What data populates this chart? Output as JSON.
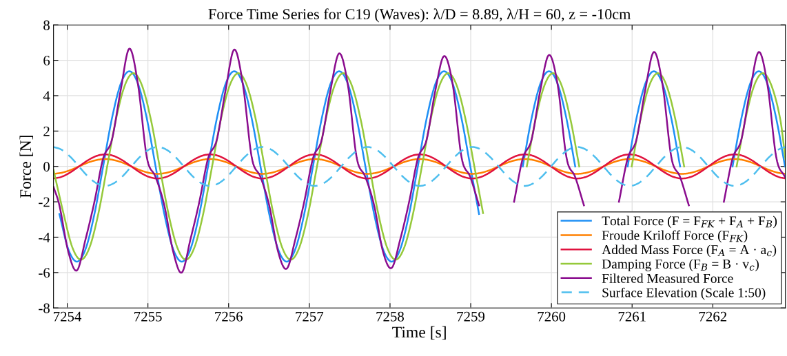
{
  "chart_data": {
    "type": "line",
    "title": "Force Time Series for C19 (Waves): λ/D = 8.89, λ/H = 60, z = -10cm",
    "xlabel": "Time [s]",
    "ylabel": "Force [N]",
    "xlim": [
      7253.83,
      7262.9
    ],
    "ylim": [
      -8,
      8
    ],
    "xticks": [
      7254,
      7255,
      7256,
      7257,
      7258,
      7259,
      7260,
      7261,
      7262
    ],
    "yticks": [
      -8,
      -6,
      -4,
      -2,
      0,
      2,
      4,
      6,
      8
    ],
    "grid": true,
    "legend": "bottom right",
    "series": [
      {
        "name": "Total Force (F = F$_{FK}$ + F$_{A}$ + F$_{B}$)",
        "color": "#1e8ff5",
        "x": [
          7253.903,
          7254.012,
          7254.12,
          7254.228,
          7254.337,
          7254.445,
          7254.553,
          7254.662,
          7254.77,
          7254.878,
          7254.987,
          7255.095,
          7255.203,
          7255.312,
          7255.42,
          7255.528,
          7255.637,
          7255.745,
          7255.853,
          7255.962,
          7256.07,
          7256.178,
          7256.287,
          7256.395,
          7256.503,
          7256.612,
          7256.72,
          7256.828,
          7256.937,
          7257.045,
          7257.153,
          7257.262,
          7257.37,
          7257.478,
          7257.587,
          7257.695,
          7257.803,
          7257.912,
          7258.02,
          7258.128,
          7258.237,
          7258.345,
          7258.453,
          7258.562,
          7258.67,
          7258.778,
          7258.887,
          7258.995,
          7259.103,
          7259.212,
          7259.32,
          7259.428,
          7259.537,
          7259.645,
          7259.753,
          7259.862,
          7259.97,
          7260.078,
          7260.187,
          7260.295,
          7260.403,
          7260.512,
          7260.62,
          7260.728,
          7260.837,
          7260.945,
          7261.053,
          7261.162,
          7261.27,
          7261.378,
          7261.487,
          7261.595,
          7261.703,
          7261.812,
          7261.92,
          7262.028,
          7262.137,
          7262.245,
          7262.353,
          7262.462,
          7262.57,
          7262.678,
          7262.787,
          7262.895
        ],
        "values": [
          -2.69,
          -4.66,
          -5.38,
          -4.66,
          -2.69,
          0,
          2.69,
          4.66,
          5.38,
          4.66,
          2.69,
          0,
          -2.69,
          -4.66,
          -5.38,
          -4.66,
          -2.69,
          0,
          2.69,
          4.66,
          5.38,
          4.66,
          2.69,
          0,
          -2.69,
          -4.66,
          -5.38,
          -4.66,
          -2.69,
          0,
          2.69,
          4.66,
          5.38,
          4.66,
          2.69,
          0,
          -2.69,
          -4.66,
          -5.38,
          -4.66,
          -2.69,
          0,
          2.69,
          4.66,
          5.38,
          4.66,
          2.69,
          0,
          -2.69,
          null,
          null,
          null,
          null,
          0,
          2.69,
          4.66,
          5.38,
          4.66,
          2.69,
          0,
          null,
          null,
          null,
          null,
          null,
          0,
          2.69,
          4.66,
          5.38,
          4.66,
          2.69,
          0,
          null,
          null,
          null,
          null,
          null,
          0,
          2.69,
          4.66,
          5.38,
          4.66,
          2.69,
          0
        ]
      },
      {
        "name": "Froude Kriloff Force (F$_{FK}$)",
        "color": "#ff8000",
        "x": [
          7253.83,
          7253.928,
          7254.037,
          7254.145,
          7254.253,
          7254.362,
          7254.47,
          7254.578,
          7254.687,
          7254.795,
          7254.903,
          7255.012,
          7255.12,
          7255.228,
          7255.337,
          7255.445,
          7255.553,
          7255.662,
          7255.77,
          7255.878,
          7255.987,
          7256.095,
          7256.203,
          7256.312,
          7256.42,
          7256.528,
          7256.637,
          7256.745,
          7256.853,
          7256.962,
          7257.07,
          7257.178,
          7257.287,
          7257.395,
          7257.503,
          7257.612,
          7257.72,
          7257.828,
          7257.937,
          7258.045,
          7258.153,
          7258.262,
          7258.37,
          7258.478,
          7258.587,
          7258.695,
          7258.803,
          7258.912,
          7259.02,
          7259.128,
          7259.237,
          7259.345,
          7259.453,
          7259.562,
          7259.67,
          7259.778,
          7259.887,
          7259.995,
          7260.103,
          7260.212,
          7260.32,
          7260.428,
          7260.537,
          7260.645,
          7260.753,
          7260.862,
          7260.97,
          7261.078,
          7261.187,
          7261.295,
          7261.403,
          7261.512,
          7261.62,
          7261.728,
          7261.837,
          7261.945,
          7262.053,
          7262.162,
          7262.27,
          7262.378,
          7262.487,
          7262.595,
          7262.703,
          7262.812,
          7262.9
        ],
        "values": [
          -0.42,
          -0.36,
          -0.21,
          0,
          0.21,
          0.36,
          0.42,
          0.36,
          0.21,
          0,
          -0.21,
          -0.36,
          -0.42,
          -0.36,
          -0.21,
          0,
          0.21,
          0.36,
          0.42,
          0.36,
          0.21,
          0,
          -0.21,
          -0.36,
          -0.42,
          -0.36,
          -0.21,
          0,
          0.21,
          0.36,
          0.42,
          0.36,
          0.21,
          0,
          -0.21,
          -0.36,
          -0.42,
          -0.36,
          -0.21,
          0,
          0.21,
          0.36,
          0.42,
          0.36,
          0.21,
          0,
          -0.21,
          -0.36,
          -0.42,
          -0.36,
          -0.21,
          0,
          0.21,
          0.36,
          0.42,
          0.36,
          0.21,
          0,
          -0.21,
          -0.36,
          -0.42,
          -0.36,
          -0.21,
          0,
          0.21,
          0.36,
          0.42,
          0.36,
          0.21,
          0,
          -0.21,
          -0.36,
          -0.42,
          -0.36,
          -0.21,
          0,
          0.21,
          0.36,
          0.42,
          0.36,
          0.21,
          0,
          -0.21,
          -0.36,
          -0.42
        ]
      },
      {
        "name": "Added Mass Force (F$_{A}$ = A · a$_{c}$)",
        "color": "#e0123e",
        "x": [
          7253.83,
          7253.928,
          7254.037,
          7254.145,
          7254.253,
          7254.362,
          7254.47,
          7254.578,
          7254.687,
          7254.795,
          7254.903,
          7255.012,
          7255.12,
          7255.228,
          7255.337,
          7255.445,
          7255.553,
          7255.662,
          7255.77,
          7255.878,
          7255.987,
          7256.095,
          7256.203,
          7256.312,
          7256.42,
          7256.528,
          7256.637,
          7256.745,
          7256.853,
          7256.962,
          7257.07,
          7257.178,
          7257.287,
          7257.395,
          7257.503,
          7257.612,
          7257.72,
          7257.828,
          7257.937,
          7258.045,
          7258.153,
          7258.262,
          7258.37,
          7258.478,
          7258.587,
          7258.695,
          7258.803,
          7258.912,
          7259.02,
          7259.128,
          7259.237,
          7259.345,
          7259.453,
          7259.562,
          7259.67,
          7259.778,
          7259.887,
          7259.995,
          7260.103,
          7260.212,
          7260.32,
          7260.428,
          7260.537,
          7260.645,
          7260.753,
          7260.862,
          7260.97,
          7261.078,
          7261.187,
          7261.295,
          7261.403,
          7261.512,
          7261.62,
          7261.728,
          7261.837,
          7261.945,
          7262.053,
          7262.162,
          7262.27,
          7262.378,
          7262.487,
          7262.595,
          7262.703,
          7262.812,
          7262.9
        ],
        "values": [
          -0.68,
          -0.59,
          -0.34,
          0,
          0.34,
          0.59,
          0.68,
          0.59,
          0.34,
          0,
          -0.34,
          -0.59,
          -0.68,
          -0.59,
          -0.34,
          0,
          0.34,
          0.59,
          0.68,
          0.59,
          0.34,
          0,
          -0.34,
          -0.59,
          -0.68,
          -0.59,
          -0.34,
          0,
          0.34,
          0.59,
          0.68,
          0.59,
          0.34,
          0,
          -0.34,
          -0.59,
          -0.68,
          -0.59,
          -0.34,
          0,
          0.34,
          0.59,
          0.68,
          0.59,
          0.34,
          0,
          -0.34,
          -0.59,
          -0.68,
          -0.59,
          -0.34,
          0,
          0.34,
          0.59,
          0.68,
          0.59,
          0.34,
          0,
          -0.34,
          -0.59,
          -0.68,
          -0.59,
          -0.34,
          0,
          0.34,
          0.59,
          0.68,
          0.59,
          0.34,
          0,
          -0.34,
          -0.59,
          -0.68,
          -0.59,
          -0.34,
          0,
          0.34,
          0.59,
          0.68,
          0.59,
          0.34,
          0,
          -0.34,
          -0.59,
          -0.68
        ]
      },
      {
        "name": "Damping Force (F$_{B}$ = B · v$_{c}$)",
        "color": "#95c93a",
        "x": [
          7253.83,
          7253.953,
          7254.062,
          7254.17,
          7254.278,
          7254.387,
          7254.495,
          7254.603,
          7254.712,
          7254.82,
          7254.928,
          7255.037,
          7255.145,
          7255.253,
          7255.362,
          7255.47,
          7255.578,
          7255.687,
          7255.795,
          7255.903,
          7256.012,
          7256.12,
          7256.228,
          7256.337,
          7256.445,
          7256.553,
          7256.662,
          7256.77,
          7256.878,
          7256.987,
          7257.095,
          7257.203,
          7257.312,
          7257.42,
          7257.528,
          7257.637,
          7257.745,
          7257.853,
          7257.962,
          7258.07,
          7258.178,
          7258.287,
          7258.395,
          7258.503,
          7258.612,
          7258.72,
          7258.828,
          7258.937,
          7259.045,
          7259.153,
          7259.262,
          7259.37,
          7259.478,
          7259.587,
          7259.695,
          7259.803,
          7259.912,
          7260.02,
          7260.128,
          7260.237,
          7260.345,
          7260.453,
          7260.562,
          7260.67,
          7260.778,
          7260.887,
          7260.995,
          7261.103,
          7261.212,
          7261.32,
          7261.428,
          7261.537,
          7261.645,
          7261.753,
          7261.862,
          7261.97,
          7262.078,
          7262.187,
          7262.295,
          7262.403,
          7262.512,
          7262.62,
          7262.728,
          7262.837,
          7262.9
        ],
        "values": [
          -0.2,
          -2.64,
          -4.56,
          -5.27,
          -4.56,
          -2.64,
          0,
          2.64,
          4.56,
          5.27,
          4.56,
          2.64,
          0,
          -2.64,
          -4.56,
          -5.27,
          -4.56,
          -2.64,
          0,
          2.64,
          4.56,
          5.27,
          4.56,
          2.64,
          0,
          -2.64,
          -4.56,
          -5.27,
          -4.56,
          -2.64,
          0,
          2.64,
          4.56,
          5.27,
          4.56,
          2.64,
          0,
          -2.64,
          -4.56,
          -5.27,
          -4.56,
          -2.64,
          0,
          2.64,
          4.56,
          5.27,
          4.56,
          2.64,
          0,
          -2.64,
          null,
          null,
          null,
          null,
          0,
          2.64,
          4.56,
          5.27,
          4.56,
          2.64,
          0,
          null,
          null,
          null,
          null,
          null,
          0,
          2.64,
          4.56,
          5.27,
          4.56,
          2.64,
          0,
          null,
          null,
          null,
          null,
          null,
          0,
          2.64,
          4.56,
          5.27,
          4.56,
          2.64,
          0.4
        ]
      },
      {
        "name": "Filtered Measured Force",
        "color": "#8a0c8e",
        "x": [
          7253.83,
          7253.903,
          7254.012,
          7254.12,
          7254.228,
          7254.337,
          7254.445,
          7254.553,
          7254.662,
          7254.77,
          7254.878,
          7254.987,
          7255.095,
          7255.203,
          7255.312,
          7255.42,
          7255.528,
          7255.637,
          7255.745,
          7255.853,
          7255.962,
          7256.07,
          7256.178,
          7256.287,
          7256.395,
          7256.503,
          7256.612,
          7256.72,
          7256.828,
          7256.937,
          7257.045,
          7257.153,
          7257.262,
          7257.37,
          7257.478,
          7257.587,
          7257.695,
          7257.803,
          7257.912,
          7258.02,
          7258.128,
          7258.237,
          7258.345,
          7258.453,
          7258.562,
          7258.67,
          7258.778,
          7258.887,
          7258.995,
          7259.103,
          7259.212,
          7259.32,
          7259.428,
          7259.537,
          7259.645,
          7259.753,
          7259.862,
          7259.97,
          7260.078,
          7260.187,
          7260.295,
          7260.403,
          7260.512,
          7260.62,
          7260.728,
          7260.837,
          7260.945,
          7261.053,
          7261.162,
          7261.27,
          7261.378,
          7261.487,
          7261.595,
          7261.703,
          7261.812,
          7261.92,
          7262.028,
          7262.137,
          7262.245,
          7262.353,
          7262.462,
          7262.57,
          7262.678,
          7262.787,
          7262.895
        ],
        "values": [
          -1.16,
          -2.2,
          -4.8,
          -5.88,
          -4.1,
          -2.0,
          0.45,
          1.5,
          4.3,
          6.66,
          4.6,
          0.5,
          -0.6,
          -2.2,
          -4.8,
          -6.0,
          -4.1,
          -2.0,
          0.45,
          1.5,
          4.3,
          6.61,
          4.6,
          0.5,
          -0.6,
          -2.2,
          -4.8,
          -5.78,
          -4.1,
          -2.0,
          0.45,
          1.5,
          4.3,
          6.39,
          4.6,
          0.5,
          -0.6,
          -2.2,
          -4.8,
          -5.74,
          -4.1,
          -2.0,
          0.45,
          1.5,
          4.3,
          6.24,
          4.6,
          0.5,
          -0.6,
          -2.2,
          null,
          null,
          null,
          -2.0,
          0.45,
          1.5,
          4.3,
          6.3,
          4.6,
          0.5,
          -0.6,
          -2.2,
          null,
          null,
          null,
          -2.0,
          0.45,
          1.5,
          4.3,
          6.47,
          4.6,
          0.5,
          -0.6,
          -2.2,
          null,
          null,
          null,
          -2.0,
          0.45,
          1.5,
          4.3,
          6.47,
          4.6,
          0.5,
          -0.6
        ]
      },
      {
        "name": "Surface Elevation (Scale 1:50)",
        "color": "#4dbeee",
        "line_style": "dashed",
        "x": [
          7253.83,
          7253.928,
          7254.037,
          7254.145,
          7254.253,
          7254.362,
          7254.47,
          7254.578,
          7254.687,
          7254.795,
          7254.903,
          7255.012,
          7255.12,
          7255.228,
          7255.337,
          7255.445,
          7255.553,
          7255.662,
          7255.77,
          7255.878,
          7255.987,
          7256.095,
          7256.203,
          7256.312,
          7256.42,
          7256.528,
          7256.637,
          7256.745,
          7256.853,
          7256.962,
          7257.07,
          7257.178,
          7257.287,
          7257.395,
          7257.503,
          7257.612,
          7257.72,
          7257.828,
          7257.937,
          7258.045,
          7258.153,
          7258.262,
          7258.37,
          7258.478,
          7258.587,
          7258.695,
          7258.803,
          7258.912,
          7259.02,
          7259.128,
          7259.237,
          7259.345,
          7259.453,
          7259.562,
          7259.67,
          7259.778,
          7259.887,
          7259.995,
          7260.103,
          7260.212,
          7260.32,
          7260.428,
          7260.537,
          7260.645,
          7260.753,
          7260.862,
          7260.97,
          7261.078,
          7261.187,
          7261.295,
          7261.403,
          7261.512,
          7261.62,
          7261.728,
          7261.837,
          7261.945,
          7262.053,
          7262.162,
          7262.27,
          7262.378,
          7262.487,
          7262.595,
          7262.703,
          7262.812,
          7262.9
        ],
        "values": [
          1.1,
          0.95,
          0.55,
          0,
          -0.55,
          -0.95,
          -1.1,
          -0.95,
          -0.55,
          0,
          0.55,
          0.95,
          1.1,
          0.95,
          0.55,
          0,
          -0.55,
          -0.95,
          -1.1,
          -0.95,
          -0.55,
          0,
          0.55,
          0.95,
          1.1,
          0.95,
          0.55,
          0,
          -0.55,
          -0.95,
          -1.1,
          -0.95,
          -0.55,
          0,
          0.55,
          0.95,
          1.1,
          0.95,
          0.55,
          0,
          -0.55,
          -0.95,
          -1.1,
          -0.95,
          -0.55,
          0,
          0.55,
          0.95,
          1.1,
          0.95,
          0.55,
          0,
          -0.55,
          -0.95,
          -1.1,
          -0.95,
          -0.55,
          0,
          0.55,
          0.95,
          1.1,
          0.95,
          0.55,
          0,
          -0.55,
          -0.95,
          -1.1,
          -0.95,
          -0.55,
          0,
          0.55,
          0.95,
          1.1,
          0.95,
          0.55,
          0,
          -0.55,
          -0.95,
          -1.1,
          -0.95,
          -0.55,
          0,
          0.55,
          0.95,
          1.1
        ]
      }
    ]
  }
}
